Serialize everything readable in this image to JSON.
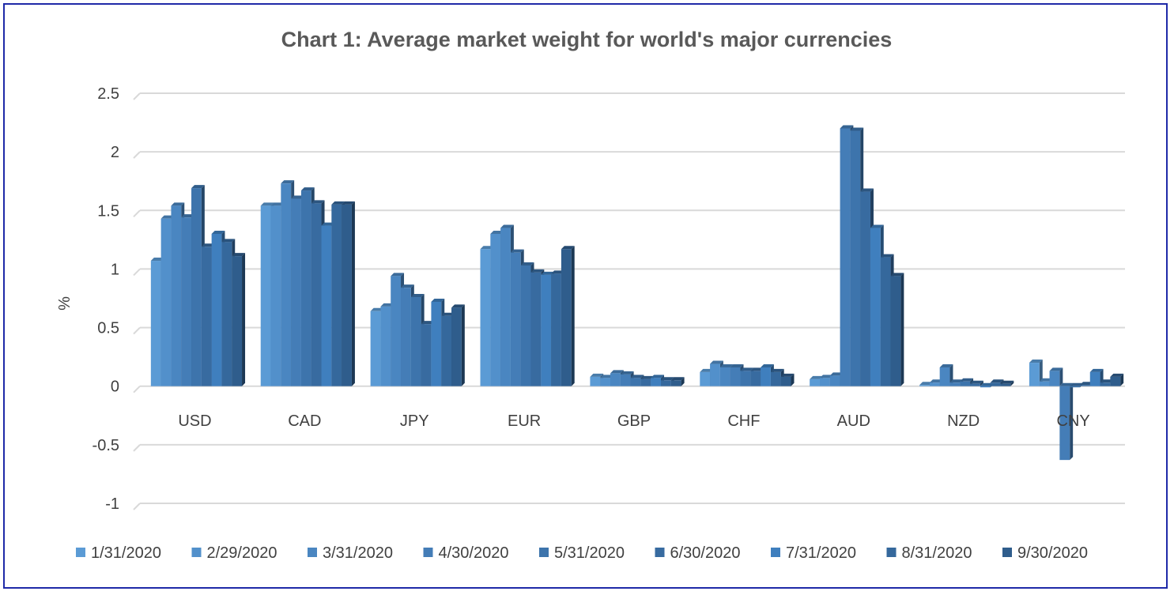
{
  "chart_data": {
    "type": "bar",
    "title": "Chart 1: Average market weight for world's major currencies",
    "xlabel": "",
    "ylabel": "%",
    "ylim": [
      -1,
      2.5
    ],
    "yticks": [
      2.5,
      2,
      1.5,
      1,
      0.5,
      0,
      -0.5,
      -1
    ],
    "ytick_labels": [
      "2.5",
      "2",
      "1.5",
      "1",
      "0.5",
      "0",
      "-0.5",
      "-1"
    ],
    "grid": true,
    "legend_position": "bottom",
    "categories": [
      "USD",
      "CAD",
      "JPY",
      "EUR",
      "GBP",
      "CHF",
      "AUD",
      "NZD",
      "CNY"
    ],
    "series": [
      {
        "name": "1/31/2020",
        "color": "#5b9bd5",
        "values": [
          1.07,
          1.54,
          0.64,
          1.17,
          0.08,
          0.12,
          0.06,
          0.01,
          0.2
        ]
      },
      {
        "name": "2/29/2020",
        "color": "#5290cb",
        "values": [
          1.43,
          1.54,
          0.68,
          1.3,
          0.07,
          0.19,
          0.07,
          0.03,
          0.04
        ]
      },
      {
        "name": "3/31/2020",
        "color": "#4a86c1",
        "values": [
          1.54,
          1.73,
          0.94,
          1.35,
          0.11,
          0.16,
          0.09,
          0.16,
          0.13
        ]
      },
      {
        "name": "4/30/2020",
        "color": "#447db7",
        "values": [
          1.44,
          1.6,
          0.84,
          1.14,
          0.1,
          0.16,
          2.2,
          0.03,
          -0.63
        ]
      },
      {
        "name": "5/31/2020",
        "color": "#3d74ac",
        "values": [
          1.69,
          1.67,
          0.76,
          1.03,
          0.07,
          0.13,
          2.18,
          0.04,
          -0.01
        ]
      },
      {
        "name": "6/30/2020",
        "color": "#386ba0",
        "values": [
          1.19,
          1.56,
          0.53,
          0.97,
          0.06,
          0.13,
          1.66,
          0.02,
          0.01
        ]
      },
      {
        "name": "7/31/2020",
        "color": "#3f7fbe",
        "values": [
          1.3,
          1.37,
          0.72,
          0.95,
          0.07,
          0.16,
          1.35,
          -0.01,
          0.12
        ]
      },
      {
        "name": "8/31/2020",
        "color": "#35689c",
        "values": [
          1.23,
          1.55,
          0.6,
          0.96,
          0.05,
          0.12,
          1.1,
          0.03,
          0.03
        ]
      },
      {
        "name": "9/30/2020",
        "color": "#2f5d8c",
        "values": [
          1.11,
          1.55,
          0.67,
          1.17,
          0.05,
          0.08,
          0.94,
          0.02,
          0.08
        ]
      }
    ]
  }
}
